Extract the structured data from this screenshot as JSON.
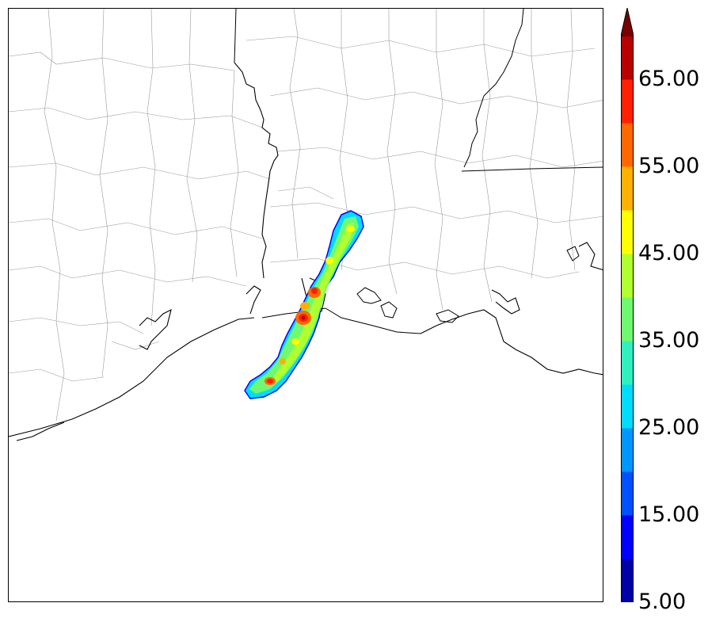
{
  "map": {
    "region": "Gulf Coast (Louisiana / Mississippi)",
    "features": [
      "county-borders",
      "state-borders",
      "coastline",
      "lakes",
      "river"
    ]
  },
  "colorbar": {
    "labels": [
      "65.00",
      "55.00",
      "45.00",
      "35.00",
      "25.00",
      "15.00",
      "5.00"
    ],
    "levels": [
      5,
      10,
      15,
      20,
      25,
      30,
      35,
      40,
      45,
      50,
      55,
      60,
      65,
      70
    ],
    "colors": [
      "#0000a8",
      "#0000ff",
      "#0050ff",
      "#0096ff",
      "#00dcff",
      "#30f0c0",
      "#70f870",
      "#b0ff30",
      "#ffff00",
      "#ffb000",
      "#ff6800",
      "#ff2000",
      "#b80000",
      "#7a0000"
    ],
    "extend": "max"
  }
}
